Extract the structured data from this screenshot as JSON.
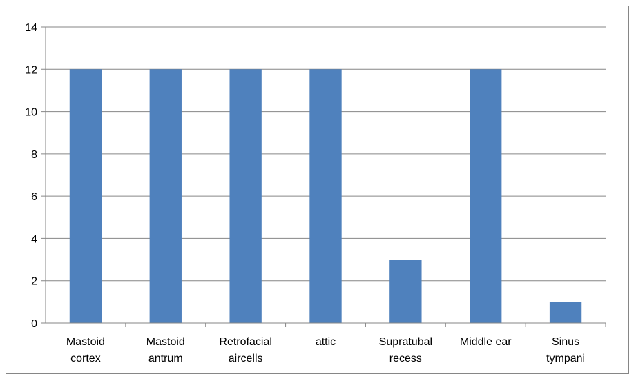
{
  "chart_data": {
    "type": "bar",
    "categories": [
      [
        "Mastoid",
        "cortex"
      ],
      [
        "Mastoid",
        "antrum"
      ],
      [
        "Retrofacial",
        "aircells"
      ],
      [
        "attic"
      ],
      [
        "Supratubal",
        "recess"
      ],
      [
        "Middle ear"
      ],
      [
        "Sinus",
        "tympani"
      ]
    ],
    "values": [
      12,
      12,
      12,
      12,
      3,
      12,
      1
    ],
    "yticks": [
      "0",
      "2",
      "4",
      "6",
      "8",
      "10",
      "12",
      "14"
    ],
    "ylim": [
      0,
      14
    ],
    "grid": true,
    "legend": "none",
    "colors": {
      "bar": "#4F81BD",
      "grid": "#868686",
      "axis": "#868686"
    }
  }
}
